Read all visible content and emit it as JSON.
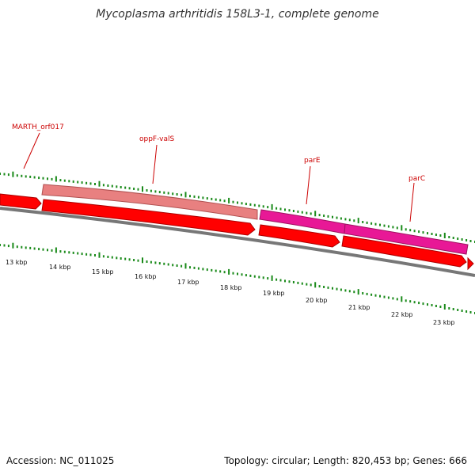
{
  "title": "Mycoplasma arthritidis 158L3-1, complete genome",
  "footer": {
    "accession": "Accession: NC_011025",
    "summary": "Topology: circular; Length: 820,453 bp; Genes: 666"
  },
  "colors": {
    "forward_gene_top": "#e88080",
    "forward_gene_pink": "#e81896",
    "reverse_gene": "#ff0000",
    "backbone": "#808080",
    "tick_green": "#1a8a1a",
    "label_red": "#cc0000"
  },
  "genes": [
    {
      "name": "MARTH_orf017",
      "strand": "reverse"
    },
    {
      "name": "oppF-valS",
      "strand": "forward"
    },
    {
      "name": "parE",
      "strand": "forward"
    },
    {
      "name": "parC",
      "strand": "forward"
    }
  ],
  "scale_labels": [
    "13 kbp",
    "14 kbp",
    "15 kbp",
    "16 kbp",
    "17 kbp",
    "18 kbp",
    "19 kbp",
    "20 kbp",
    "21 kbp",
    "22 kbp",
    "23 kbp"
  ]
}
